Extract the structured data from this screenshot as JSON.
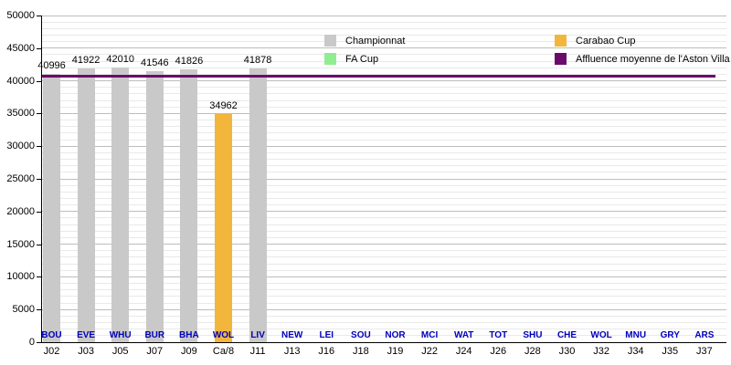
{
  "chart_data": {
    "type": "bar",
    "title": "",
    "categories": [
      "J02",
      "J03",
      "J05",
      "J07",
      "J09",
      "Ca/8",
      "J11",
      "J13",
      "J16",
      "J18",
      "J19",
      "J22",
      "J24",
      "J26",
      "J28",
      "J30",
      "J32",
      "J34",
      "J35",
      "J37"
    ],
    "opponents": [
      "BOU",
      "EVE",
      "WHU",
      "BUR",
      "BHA",
      "WOL",
      "LIV",
      "NEW",
      "LEI",
      "SOU",
      "NOR",
      "MCI",
      "WAT",
      "TOT",
      "SHU",
      "CHE",
      "WOL",
      "MNU",
      "GRY",
      "ARS"
    ],
    "series": [
      {
        "name": "Championnat",
        "color": "#c9c9c9",
        "values": [
          40996,
          41922,
          42010,
          41546,
          41826,
          null,
          41878,
          null,
          null,
          null,
          null,
          null,
          null,
          null,
          null,
          null,
          null,
          null,
          null,
          null
        ]
      },
      {
        "name": "FA Cup",
        "color": "#90ee90",
        "values": [
          null,
          null,
          null,
          null,
          null,
          null,
          null,
          null,
          null,
          null,
          null,
          null,
          null,
          null,
          null,
          null,
          null,
          null,
          null,
          null
        ]
      },
      {
        "name": "Carabao Cup",
        "color": "#f2b63c",
        "values": [
          null,
          null,
          null,
          null,
          null,
          34962,
          null,
          null,
          null,
          null,
          null,
          null,
          null,
          null,
          null,
          null,
          null,
          null,
          null,
          null
        ]
      }
    ],
    "average_line": {
      "label": "Affluence moyenne de l'Aston Villa FC",
      "color": "#6c0a6c",
      "value": 40734
    },
    "yticks": [
      0,
      5000,
      10000,
      15000,
      20000,
      25000,
      30000,
      35000,
      40000,
      45000,
      50000
    ],
    "ylim": [
      0,
      50000
    ],
    "ytick_step": 5000,
    "minor_grid_step": 1000,
    "grid": true,
    "legend_position": "top",
    "colors": {
      "grid_minor": "#e9e9e9",
      "grid_major": "#bdbdbd",
      "team_label": "#0000bb",
      "axis": "#000000",
      "value_label": "#000000"
    }
  }
}
